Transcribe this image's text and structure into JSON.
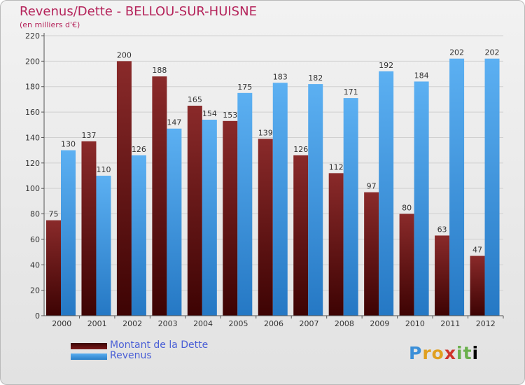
{
  "chart_data": {
    "type": "bar",
    "title": "Revenus/Dette - BELLOU-SUR-HUISNE",
    "subtitle": "(en milliers d'€)",
    "categories": [
      "2000",
      "2001",
      "2002",
      "2003",
      "2004",
      "2005",
      "2006",
      "2007",
      "2008",
      "2009",
      "2010",
      "2011",
      "2012"
    ],
    "series": [
      {
        "name": "Montant de la Dette",
        "color": "#7a1a1a",
        "values": [
          75,
          137,
          200,
          188,
          165,
          153,
          139,
          126,
          112,
          97,
          80,
          63,
          47
        ]
      },
      {
        "name": "Revenus",
        "color": "#3d9be6",
        "values": [
          130,
          110,
          126,
          147,
          154,
          175,
          183,
          182,
          171,
          192,
          184,
          202,
          202
        ]
      }
    ],
    "ylim": [
      0,
      220
    ],
    "yticks": [
      0,
      20,
      40,
      60,
      80,
      100,
      120,
      140,
      160,
      180,
      200,
      220
    ],
    "grid": true,
    "legend": "bottom-left"
  },
  "logo": {
    "text": "Proxiti",
    "letters": [
      "P",
      "r",
      "o",
      "x",
      "i",
      "t",
      "i"
    ]
  }
}
